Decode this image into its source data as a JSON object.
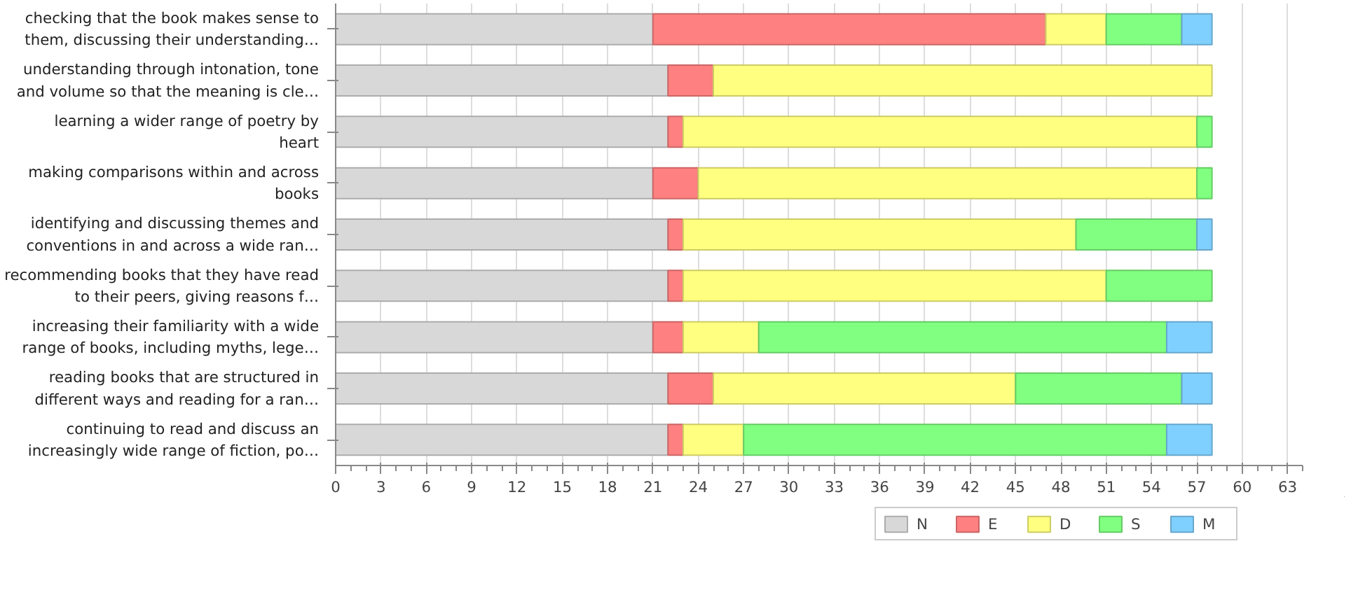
{
  "chart_data": {
    "type": "bar",
    "orientation": "horizontal",
    "stacked": true,
    "categories": [
      "checking that the book makes sense to them, discussing their understanding…",
      "understanding through intonation, tone and volume so that the meaning is cle…",
      "learning a wider range of poetry by heart",
      "making comparisons within and across books",
      "identifying and discussing themes and conventions in and across a wide ran…",
      "recommending books that they have read to their peers, giving reasons f…",
      "increasing their familiarity with a wide range of books, including myths, lege…",
      "reading books that are structured in different ways and reading for a ran…",
      "continuing to read and discuss an increasingly wide range of fiction, po…"
    ],
    "series": [
      {
        "name": "N",
        "color": "#d8d8d8",
        "values": [
          21,
          22,
          22,
          21,
          22,
          22,
          21,
          22,
          22
        ]
      },
      {
        "name": "E",
        "color": "#ff8080",
        "values": [
          26,
          3,
          1,
          3,
          1,
          1,
          2,
          3,
          1
        ]
      },
      {
        "name": "D",
        "color": "#ffff80",
        "values": [
          4,
          33,
          34,
          33,
          26,
          28,
          5,
          20,
          4
        ]
      },
      {
        "name": "S",
        "color": "#80ff80",
        "values": [
          5,
          0,
          1,
          1,
          8,
          7,
          27,
          11,
          28
        ]
      },
      {
        "name": "M",
        "color": "#80d0ff",
        "values": [
          2,
          0,
          0,
          0,
          1,
          0,
          3,
          2,
          3
        ]
      }
    ],
    "xlim": [
      0,
      64
    ],
    "xticks": [
      0,
      3,
      6,
      9,
      12,
      15,
      18,
      21,
      24,
      27,
      30,
      33,
      36,
      39,
      42,
      45,
      48,
      51,
      54,
      57,
      60,
      63
    ],
    "grid": "x",
    "legend": "bottom"
  }
}
